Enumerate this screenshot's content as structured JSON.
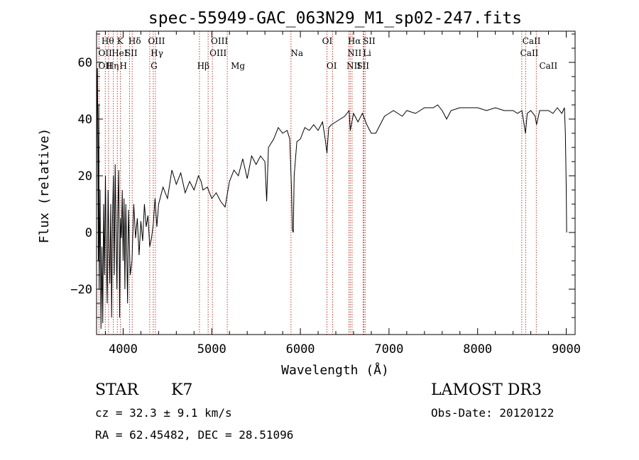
{
  "chart_data": {
    "type": "line",
    "title": "spec-55949-GAC_063N29_M1_sp02-247.fits",
    "xlabel": "Wavelength (Å)",
    "ylabel": "Flux (relative)",
    "xlim": [
      3700,
      9100
    ],
    "ylim": [
      -36,
      71
    ],
    "xticks": [
      4000,
      5000,
      6000,
      7000,
      8000,
      9000
    ],
    "xtick_labels": [
      "4000",
      "5000",
      "6000",
      "7000",
      "8000",
      "9000"
    ],
    "yticks": [
      -20,
      0,
      20,
      40,
      60
    ],
    "ytick_labels": [
      "−20",
      "0",
      "20",
      "40",
      "60"
    ],
    "series": [
      {
        "name": "flux",
        "points": [
          [
            3700,
            10
          ],
          [
            3705,
            50
          ],
          [
            3710,
            58
          ],
          [
            3715,
            30
          ],
          [
            3720,
            -10
          ],
          [
            3725,
            45
          ],
          [
            3730,
            -20
          ],
          [
            3740,
            15
          ],
          [
            3750,
            -34
          ],
          [
            3760,
            -5
          ],
          [
            3770,
            -32
          ],
          [
            3780,
            10
          ],
          [
            3790,
            -15
          ],
          [
            3800,
            20
          ],
          [
            3810,
            -8
          ],
          [
            3820,
            -25
          ],
          [
            3830,
            15
          ],
          [
            3840,
            -5
          ],
          [
            3850,
            -18
          ],
          [
            3860,
            10
          ],
          [
            3870,
            -30
          ],
          [
            3880,
            5
          ],
          [
            3890,
            20
          ],
          [
            3900,
            -15
          ],
          [
            3910,
            24
          ],
          [
            3920,
            0
          ],
          [
            3930,
            -20
          ],
          [
            3940,
            8
          ],
          [
            3950,
            22
          ],
          [
            3960,
            -30
          ],
          [
            3970,
            5
          ],
          [
            3980,
            -2
          ],
          [
            3990,
            15
          ],
          [
            4000,
            -10
          ],
          [
            4010,
            12
          ],
          [
            4020,
            -20
          ],
          [
            4030,
            10
          ],
          [
            4040,
            -5
          ],
          [
            4050,
            -25
          ],
          [
            4060,
            8
          ],
          [
            4080,
            -15
          ],
          [
            4100,
            -10
          ],
          [
            4120,
            10
          ],
          [
            4140,
            -2
          ],
          [
            4160,
            5
          ],
          [
            4180,
            -8
          ],
          [
            4200,
            4
          ],
          [
            4220,
            -3
          ],
          [
            4240,
            10
          ],
          [
            4260,
            2
          ],
          [
            4280,
            6
          ],
          [
            4300,
            -5
          ],
          [
            4320,
            -2
          ],
          [
            4340,
            3
          ],
          [
            4360,
            12
          ],
          [
            4380,
            2
          ],
          [
            4400,
            10
          ],
          [
            4450,
            16
          ],
          [
            4500,
            12
          ],
          [
            4550,
            22
          ],
          [
            4600,
            17
          ],
          [
            4650,
            21
          ],
          [
            4700,
            14
          ],
          [
            4750,
            18
          ],
          [
            4800,
            15
          ],
          [
            4850,
            20
          ],
          [
            4880,
            18
          ],
          [
            4900,
            15
          ],
          [
            4950,
            16
          ],
          [
            5000,
            12
          ],
          [
            5050,
            14
          ],
          [
            5100,
            11
          ],
          [
            5150,
            9
          ],
          [
            5200,
            18
          ],
          [
            5250,
            22
          ],
          [
            5300,
            20
          ],
          [
            5350,
            26
          ],
          [
            5400,
            19
          ],
          [
            5450,
            27
          ],
          [
            5500,
            24
          ],
          [
            5550,
            27
          ],
          [
            5600,
            25
          ],
          [
            5620,
            11
          ],
          [
            5640,
            30
          ],
          [
            5700,
            33
          ],
          [
            5750,
            37
          ],
          [
            5800,
            35
          ],
          [
            5850,
            36
          ],
          [
            5880,
            33
          ],
          [
            5900,
            15
          ],
          [
            5910,
            1
          ],
          [
            5920,
            0
          ],
          [
            5930,
            20
          ],
          [
            5960,
            32
          ],
          [
            6000,
            33
          ],
          [
            6050,
            37
          ],
          [
            6100,
            36
          ],
          [
            6150,
            38
          ],
          [
            6200,
            36
          ],
          [
            6250,
            39
          ],
          [
            6280,
            33
          ],
          [
            6300,
            28
          ],
          [
            6320,
            37
          ],
          [
            6350,
            38
          ],
          [
            6400,
            39
          ],
          [
            6450,
            40
          ],
          [
            6500,
            41
          ],
          [
            6550,
            43
          ],
          [
            6563,
            36
          ],
          [
            6600,
            42
          ],
          [
            6650,
            39
          ],
          [
            6700,
            42
          ],
          [
            6750,
            38
          ],
          [
            6800,
            35
          ],
          [
            6850,
            35
          ],
          [
            6900,
            38
          ],
          [
            6950,
            41
          ],
          [
            7000,
            42
          ],
          [
            7050,
            43
          ],
          [
            7100,
            42
          ],
          [
            7150,
            41
          ],
          [
            7200,
            43
          ],
          [
            7300,
            42
          ],
          [
            7400,
            44
          ],
          [
            7500,
            44
          ],
          [
            7550,
            45
          ],
          [
            7600,
            43
          ],
          [
            7650,
            40
          ],
          [
            7700,
            43
          ],
          [
            7800,
            44
          ],
          [
            7900,
            44
          ],
          [
            8000,
            44
          ],
          [
            8100,
            43
          ],
          [
            8200,
            44
          ],
          [
            8300,
            43
          ],
          [
            8400,
            43
          ],
          [
            8450,
            42
          ],
          [
            8500,
            43
          ],
          [
            8540,
            35
          ],
          [
            8560,
            42
          ],
          [
            8600,
            43
          ],
          [
            8650,
            41
          ],
          [
            8665,
            38
          ],
          [
            8700,
            43
          ],
          [
            8800,
            43
          ],
          [
            8850,
            42
          ],
          [
            8900,
            44
          ],
          [
            8950,
            42
          ],
          [
            8980,
            44
          ],
          [
            8990,
            35
          ],
          [
            9000,
            16
          ],
          [
            9005,
            0
          ]
        ]
      }
    ],
    "lines": [
      {
        "label": "OII",
        "wl": 3727
      },
      {
        "label": "Hθ",
        "wl": 3798
      },
      {
        "label": "Hη",
        "wl": 3835
      },
      {
        "label": "HeI",
        "wl": 3889
      },
      {
        "label": "K",
        "wl": 3934
      },
      {
        "label": "H",
        "wl": 3969
      },
      {
        "label": "SII",
        "wl": 4072
      },
      {
        "label": "Hδ",
        "wl": 4102
      },
      {
        "label": "OIII",
        "wl": 4300
      },
      {
        "label": "Hγ",
        "wl": 4340
      },
      {
        "label": "G",
        "wl": 4364
      },
      {
        "label": "Hβ",
        "wl": 4861
      },
      {
        "label": "OIII",
        "wl": 4959
      },
      {
        "label": "OIII",
        "wl": 5007
      },
      {
        "label": "Mg",
        "wl": 5175
      },
      {
        "label": "Na",
        "wl": 5894
      },
      {
        "label": "OI",
        "wl": 6300
      },
      {
        "label": "OI",
        "wl": 6364
      },
      {
        "label": "NII",
        "wl": 6548
      },
      {
        "label": "Hα",
        "wl": 6563
      },
      {
        "label": "NII",
        "wl": 6583
      },
      {
        "label": "Li",
        "wl": 6708
      },
      {
        "label": "SII",
        "wl": 6716
      },
      {
        "label": "SII",
        "wl": 6731
      },
      {
        "label": "CaII",
        "wl": 8498
      },
      {
        "label": "CaII",
        "wl": 8542
      },
      {
        "label": "CaII",
        "wl": 8662
      }
    ],
    "line_labels": [
      {
        "text": "Hθ",
        "row": 1,
        "wl": 3755
      },
      {
        "text": "OII",
        "row": 2,
        "wl": 3720
      },
      {
        "text": "OII",
        "row": 3,
        "wl": 3720
      },
      {
        "text": "Hη",
        "row": 3,
        "wl": 3810
      },
      {
        "text": "K",
        "row": 1,
        "wl": 3930
      },
      {
        "text": "HeI",
        "row": 2,
        "wl": 3870
      },
      {
        "text": "H",
        "row": 3,
        "wl": 3960
      },
      {
        "text": "Hδ",
        "row": 1,
        "wl": 4060
      },
      {
        "text": "SII",
        "row": 2,
        "wl": 4020
      },
      {
        "text": "OIII",
        "row": 1,
        "wl": 4280
      },
      {
        "text": "Hγ",
        "row": 2,
        "wl": 4310
      },
      {
        "text": "G",
        "row": 3,
        "wl": 4310
      },
      {
        "text": "OIII",
        "row": 1,
        "wl": 4990
      },
      {
        "text": "OIII",
        "row": 2,
        "wl": 4975
      },
      {
        "text": "Hβ",
        "row": 3,
        "wl": 4835
      },
      {
        "text": "Mg",
        "row": 3,
        "wl": 5215
      },
      {
        "text": "Na",
        "row": 2,
        "wl": 5890
      },
      {
        "text": "OI",
        "row": 1,
        "wl": 6245
      },
      {
        "text": "OI",
        "row": 3,
        "wl": 6295
      },
      {
        "text": "Hα",
        "row": 1,
        "wl": 6535
      },
      {
        "text": "SII",
        "row": 1,
        "wl": 6705
      },
      {
        "text": "NII",
        "row": 2,
        "wl": 6530
      },
      {
        "text": "Li",
        "row": 2,
        "wl": 6705
      },
      {
        "text": "NII",
        "row": 3,
        "wl": 6520
      },
      {
        "text": "SII",
        "row": 3,
        "wl": 6635
      },
      {
        "text": "CaII",
        "row": 1,
        "wl": 8505
      },
      {
        "text": "CaII",
        "row": 2,
        "wl": 8480
      },
      {
        "text": "CaII",
        "row": 3,
        "wl": 8695
      }
    ]
  },
  "info": {
    "object_class": "STAR",
    "subclass": "K7",
    "survey": "LAMOST DR3",
    "cz": "cz = 32.3 ± 9.1 km/s",
    "obs_date": "Obs-Date: 20120122",
    "coords": "RA =  62.45482, DEC =  28.51096"
  },
  "colors": {
    "line_marker": "#c0392b",
    "spectrum": "#000000"
  }
}
